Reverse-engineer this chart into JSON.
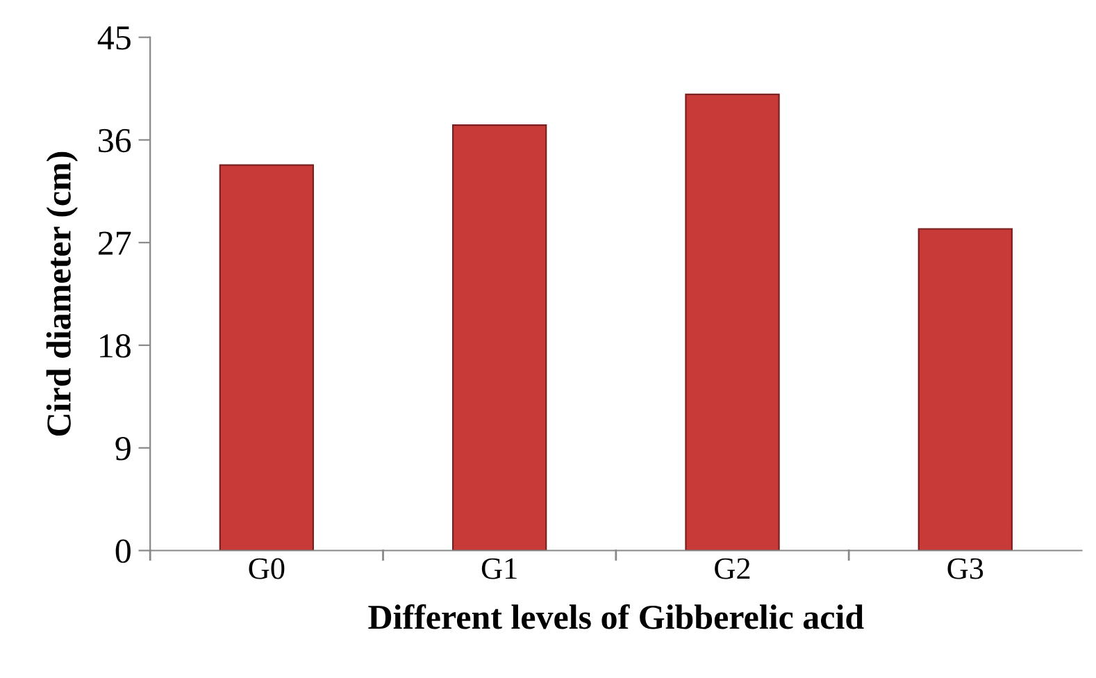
{
  "chart_data": {
    "type": "bar",
    "xlabel": "Different levels of Gibberelic acid",
    "ylabel": "Cird diameter (cm)",
    "categories": [
      "G0",
      "G1",
      "G2",
      "G3"
    ],
    "values": [
      33.8,
      37.3,
      40.0,
      28.2
    ],
    "color": "#c83a38",
    "ylim": [
      0,
      45
    ],
    "yticks": [
      0,
      9,
      18,
      27,
      36,
      45
    ],
    "grid": false,
    "legend": false
  }
}
